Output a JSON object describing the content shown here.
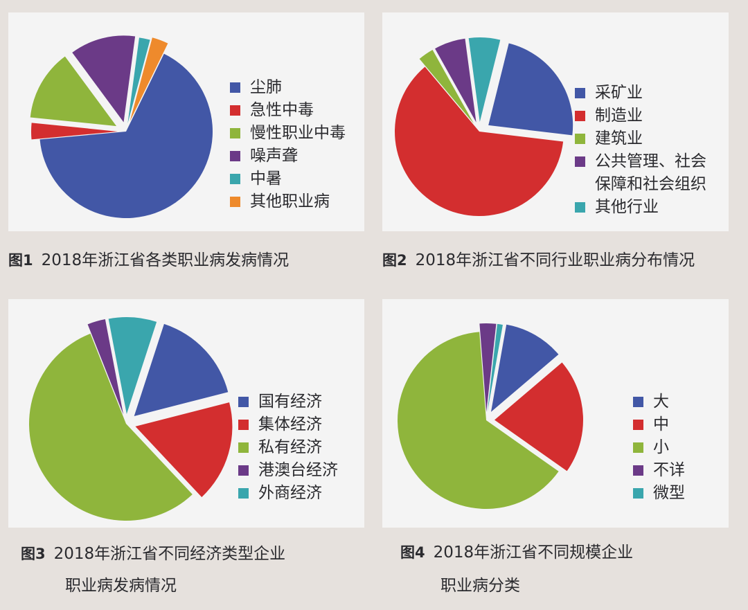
{
  "colors": {
    "blue": "#4257a6",
    "red": "#d32e2f",
    "green": "#8fb53c",
    "purple": "#6b3a87",
    "teal": "#3aa6ad",
    "orange": "#ee8a2c"
  },
  "charts": [
    {
      "caption_num": "图1",
      "caption_text": "2018年浙江省各类职业病发病情况",
      "caption_text_2": ""
    },
    {
      "caption_num": "图2",
      "caption_text": "2018年浙江省不同行业职业病分布情况",
      "caption_text_2": ""
    },
    {
      "caption_num": "图3",
      "caption_text": "2018年浙江省不同经济类型企业",
      "caption_text_2": "职业病发病情况"
    },
    {
      "caption_num": "图4",
      "caption_text": "2018年浙江省不同规模企业",
      "caption_text_2": "职业病分类"
    }
  ],
  "chart_data": [
    {
      "type": "pie",
      "title": "2018年浙江省各类职业病发病情况",
      "labels": [
        "尘肺",
        "急性中毒",
        "慢性职业中毒",
        "噪声聋",
        "中暑",
        "其他职业病"
      ],
      "values": [
        65,
        3,
        13,
        12,
        2,
        3
      ],
      "colors": [
        "#4257a6",
        "#d32e2f",
        "#8fb53c",
        "#6b3a87",
        "#3aa6ad",
        "#ee8a2c"
      ]
    },
    {
      "type": "pie",
      "title": "2018年浙江省不同行业职业病分布情况",
      "labels": [
        "采矿业",
        "制造业",
        "建筑业",
        "公共管理、社会\n保障和社会组织",
        "其他行业"
      ],
      "values": [
        23,
        62,
        3,
        6,
        6
      ],
      "colors": [
        "#4257a6",
        "#d32e2f",
        "#8fb53c",
        "#6b3a87",
        "#3aa6ad"
      ]
    },
    {
      "type": "pie",
      "title": "2018年浙江省不同经济类型企业职业病发病情况",
      "labels": [
        "国有经济",
        "集体经济",
        "私有经济",
        "港澳台经济",
        "外商经济"
      ],
      "values": [
        16,
        17,
        56,
        3,
        8
      ],
      "colors": [
        "#4257a6",
        "#d32e2f",
        "#8fb53c",
        "#6b3a87",
        "#3aa6ad"
      ]
    },
    {
      "type": "pie",
      "title": "2018年浙江省不同规模企业职业病分类",
      "labels": [
        "大",
        "中",
        "小",
        "不详",
        "微型"
      ],
      "values": [
        11,
        21,
        64,
        3,
        1
      ],
      "colors": [
        "#4257a6",
        "#d32e2f",
        "#8fb53c",
        "#6b3a87",
        "#3aa6ad"
      ]
    }
  ]
}
